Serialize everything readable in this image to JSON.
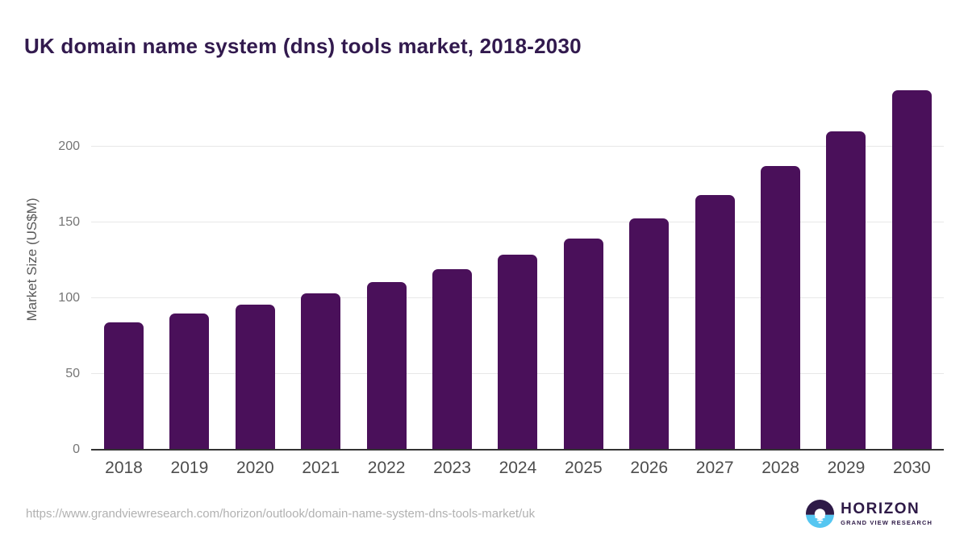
{
  "page": {
    "title": "UK domain name system (dns) tools market, 2018-2030",
    "source_url": "https://www.grandviewresearch.com/horizon/outlook/domain-name-system-dns-tools-market/uk",
    "logo": {
      "brand": "HORIZON",
      "tagline": "GRAND VIEW RESEARCH"
    }
  },
  "chart_data": {
    "type": "bar",
    "title": "UK domain name system (dns) tools market, 2018-2030",
    "categories": [
      "2018",
      "2019",
      "2020",
      "2021",
      "2022",
      "2023",
      "2024",
      "2025",
      "2026",
      "2027",
      "2028",
      "2029",
      "2030"
    ],
    "values": [
      84,
      90,
      96,
      103,
      110.5,
      119,
      128.5,
      139.5,
      152.5,
      168.3,
      187,
      210,
      237.5
    ],
    "xlabel": "",
    "ylabel": "Market Size (US$M)",
    "ylim": [
      0,
      250
    ],
    "yticks": [
      0,
      50,
      100,
      150,
      200
    ],
    "grid": true,
    "legend": "none",
    "bar_color": "#4a105a"
  },
  "colors": {
    "title_text": "#321a4e",
    "bar": "#4a105a",
    "axis_line": "#333333",
    "gridline": "#e8e8e8",
    "y_tick_label": "#757575",
    "x_tick_label": "#4d4d4d",
    "url_text": "#b1b1b1",
    "logo_purple": "#2e1a47",
    "logo_blue": "#55c6f1"
  }
}
